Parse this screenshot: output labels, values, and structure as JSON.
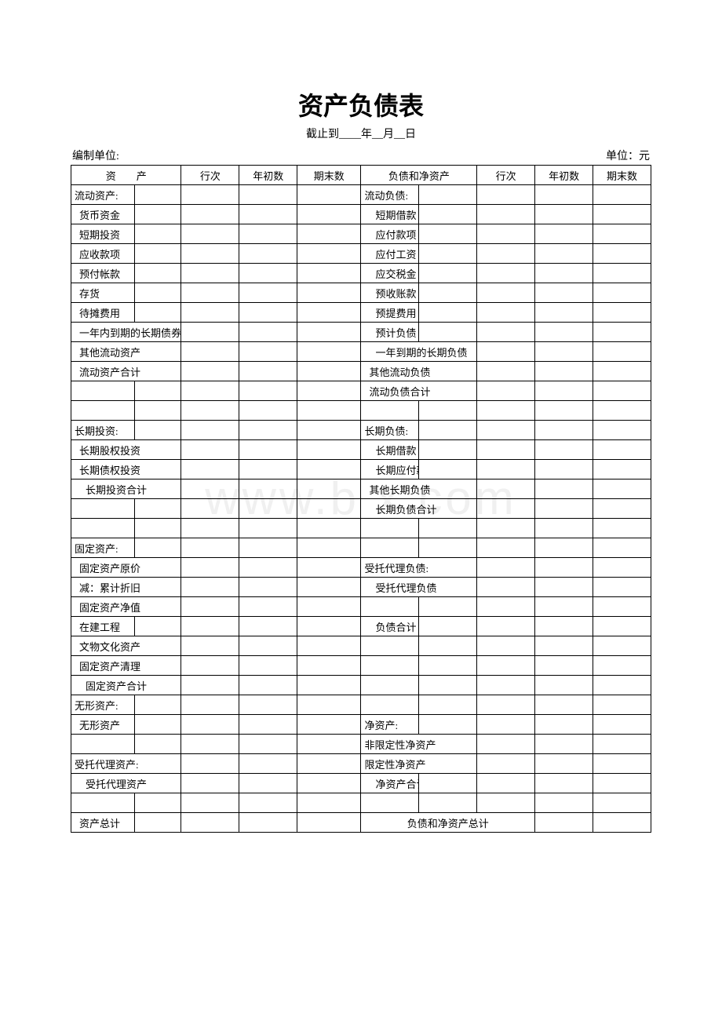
{
  "title": "资产负债表",
  "subtitle": "截止到____年__月__日",
  "meta_left": "编制单位:",
  "meta_right": "单位：元",
  "watermark": "www.b   x.com",
  "headers": {
    "h1": "资　　产",
    "h2": "行次",
    "h3": "年初数",
    "h4": "期末数",
    "h5": "负债和净资产",
    "h6": "行次",
    "h7": "年初数",
    "h8": "期末数"
  },
  "rows": [
    {
      "l1": "流动资产:",
      "l2": "",
      "l3": "",
      "l4": "",
      "r1": "流动负债:",
      "r2": "",
      "r3": "",
      "r4": "",
      "lspan": 1,
      "rspan": 1,
      "lcls": "",
      "rcls": ""
    },
    {
      "l1": "货币资金",
      "l2": "",
      "l3": "",
      "l4": "",
      "r1": "短期借款",
      "r2": "",
      "r3": "",
      "r4": "",
      "lspan": 1,
      "rspan": 1,
      "lcls": "ind1",
      "rcls": "ind2"
    },
    {
      "l1": "短期投资",
      "l2": "",
      "l3": "",
      "l4": "",
      "r1": "应付款项",
      "r2": "",
      "r3": "",
      "r4": "",
      "lspan": 1,
      "rspan": 1,
      "lcls": "ind1",
      "rcls": "ind2"
    },
    {
      "l1": "应收款项",
      "l2": "",
      "l3": "",
      "l4": "",
      "r1": "应付工资",
      "r2": "",
      "r3": "",
      "r4": "",
      "lspan": 1,
      "rspan": 1,
      "lcls": "ind1",
      "rcls": "ind2"
    },
    {
      "l1": "预付帐款",
      "l2": "",
      "l3": "",
      "l4": "",
      "r1": "应交税金",
      "r2": "",
      "r3": "",
      "r4": "",
      "lspan": 1,
      "rspan": 1,
      "lcls": "ind1",
      "rcls": "ind2"
    },
    {
      "l1": "存货",
      "l2": "",
      "l3": "",
      "l4": "",
      "r1": "预收账款",
      "r2": "",
      "r3": "",
      "r4": "",
      "lspan": 1,
      "rspan": 1,
      "lcls": "ind1",
      "rcls": "ind2"
    },
    {
      "l1": "待摊费用",
      "l2": "",
      "l3": "",
      "l4": "",
      "r1": "预提费用",
      "r2": "",
      "r3": "",
      "r4": "",
      "lspan": 1,
      "rspan": 1,
      "lcls": "ind1",
      "rcls": "ind2"
    },
    {
      "l1": "一年内到期的长期债券投资",
      "l2": "",
      "l3": "",
      "l4": "",
      "r1": "预计负债",
      "r2": "",
      "r3": "",
      "r4": "",
      "lspan": 2,
      "rspan": 1,
      "lcls": "ind1",
      "rcls": "ind2"
    },
    {
      "l1": "其他流动资产",
      "l2": "",
      "l3": "",
      "l4": "",
      "r1": "一年到期的长期负债",
      "r2": "",
      "r3": "",
      "r4": "",
      "lspan": 2,
      "rspan": 2,
      "lcls": "ind1",
      "rcls": "ind2"
    },
    {
      "l1": "流动资产合计",
      "l2": "",
      "l3": "",
      "l4": "",
      "r1": "其他流动负债",
      "r2": "",
      "r3": "",
      "r4": "",
      "lspan": 2,
      "rspan": 2,
      "lcls": "ind1",
      "rcls": "ind1"
    },
    {
      "l1": "",
      "l2": "",
      "l3": "",
      "l4": "",
      "r1": "流动负债合计",
      "r2": "",
      "r3": "",
      "r4": "",
      "lspan": 1,
      "rspan": 2,
      "lcls": "",
      "rcls": "ind1"
    },
    {
      "l1": "",
      "l2": "",
      "l3": "",
      "l4": "",
      "r1": "",
      "r2": "",
      "r3": "",
      "r4": "",
      "lspan": 1,
      "rspan": 1,
      "lcls": "",
      "rcls": ""
    },
    {
      "l1": "长期投资:",
      "l2": "",
      "l3": "",
      "l4": "",
      "r1": "长期负债:",
      "r2": "",
      "r3": "",
      "r4": "",
      "lspan": 1,
      "rspan": 1,
      "lcls": "",
      "rcls": ""
    },
    {
      "l1": "长期股权投资",
      "l2": "",
      "l3": "",
      "l4": "",
      "r1": "长期借款",
      "r2": "",
      "r3": "",
      "r4": "",
      "lspan": 2,
      "rspan": 1,
      "lcls": "ind1",
      "rcls": "ind2"
    },
    {
      "l1": "长期债权投资",
      "l2": "",
      "l3": "",
      "l4": "",
      "r1": "长期应付款",
      "r2": "",
      "r3": "",
      "r4": "",
      "lspan": 2,
      "rspan": 1,
      "lcls": "ind1",
      "rcls": "ind2"
    },
    {
      "l1": "长期投资合计",
      "l2": "",
      "l3": "",
      "l4": "",
      "r1": "其他长期负债",
      "r2": "",
      "r3": "",
      "r4": "",
      "lspan": 2,
      "rspan": 2,
      "lcls": "ind2",
      "rcls": "ind1"
    },
    {
      "l1": "",
      "l2": "",
      "l3": "",
      "l4": "",
      "r1": "长期负债合计",
      "r2": "",
      "r3": "",
      "r4": "",
      "lspan": 1,
      "rspan": 2,
      "lcls": "",
      "rcls": "ind2"
    },
    {
      "l1": "",
      "l2": "",
      "l3": "",
      "l4": "",
      "r1": "",
      "r2": "",
      "r3": "",
      "r4": "",
      "lspan": 1,
      "rspan": 1,
      "lcls": "",
      "rcls": ""
    },
    {
      "l1": "固定资产:",
      "l2": "",
      "l3": "",
      "l4": "",
      "r1": "",
      "r2": "",
      "r3": "",
      "r4": "",
      "lspan": 1,
      "rspan": 1,
      "lcls": "",
      "rcls": ""
    },
    {
      "l1": "固定资产原价",
      "l2": "",
      "l3": "",
      "l4": "",
      "r1": "受托代理负债:",
      "r2": "",
      "r3": "",
      "r4": "",
      "lspan": 2,
      "rspan": 2,
      "lcls": "ind1",
      "rcls": ""
    },
    {
      "l1": "减：累计折旧",
      "l2": "",
      "l3": "",
      "l4": "",
      "r1": "受托代理负债",
      "r2": "",
      "r3": "",
      "r4": "",
      "lspan": 2,
      "rspan": 2,
      "lcls": "ind1",
      "rcls": "ind2"
    },
    {
      "l1": "固定资产净值",
      "l2": "",
      "l3": "",
      "l4": "",
      "r1": "",
      "r2": "",
      "r3": "",
      "r4": "",
      "lspan": 2,
      "rspan": 1,
      "lcls": "ind1",
      "rcls": ""
    },
    {
      "l1": "在建工程",
      "l2": "",
      "l3": "",
      "l4": "",
      "r1": "负债合计",
      "r2": "",
      "r3": "",
      "r4": "",
      "lspan": 1,
      "rspan": 1,
      "lcls": "ind1",
      "rcls": "ind2"
    },
    {
      "l1": "文物文化资产",
      "l2": "",
      "l3": "",
      "l4": "",
      "r1": "",
      "r2": "",
      "r3": "",
      "r4": "",
      "lspan": 2,
      "rspan": 1,
      "lcls": "ind1",
      "rcls": ""
    },
    {
      "l1": "固定资产清理",
      "l2": "",
      "l3": "",
      "l4": "",
      "r1": "",
      "r2": "",
      "r3": "",
      "r4": "",
      "lspan": 2,
      "rspan": 1,
      "lcls": "ind1",
      "rcls": ""
    },
    {
      "l1": "固定资产合计",
      "l2": "",
      "l3": "",
      "l4": "",
      "r1": "",
      "r2": "",
      "r3": "",
      "r4": "",
      "lspan": 2,
      "rspan": 1,
      "lcls": "ind2",
      "rcls": ""
    },
    {
      "l1": "无形资产:",
      "l2": "",
      "l3": "",
      "l4": "",
      "r1": "",
      "r2": "",
      "r3": "",
      "r4": "",
      "lspan": 1,
      "rspan": 1,
      "lcls": "",
      "rcls": ""
    },
    {
      "l1": "无形资产",
      "l2": "",
      "l3": "",
      "l4": "",
      "r1": "净资产:",
      "r2": "",
      "r3": "",
      "r4": "",
      "lspan": 1,
      "rspan": 1,
      "lcls": "ind1",
      "rcls": ""
    },
    {
      "l1": "",
      "l2": "",
      "l3": "",
      "l4": "",
      "r1": "非限定性净资产",
      "r2": "",
      "r3": "",
      "r4": "",
      "lspan": 1,
      "rspan": 2,
      "lcls": "",
      "rcls": ""
    },
    {
      "l1": "受托代理资产:",
      "l2": "",
      "l3": "",
      "l4": "",
      "r1": "限定性净资产",
      "r2": "",
      "r3": "",
      "r4": "",
      "lspan": 2,
      "rspan": 2,
      "lcls": "",
      "rcls": ""
    },
    {
      "l1": "受托代理资产",
      "l2": "",
      "l3": "",
      "l4": "",
      "r1": "净资产合计",
      "r2": "",
      "r3": "",
      "r4": "",
      "lspan": 2,
      "rspan": 1,
      "lcls": "ind2",
      "rcls": "ind2"
    },
    {
      "l1": "",
      "l2": "",
      "l3": "",
      "l4": "",
      "r1": "",
      "r2": "",
      "r3": "",
      "r4": "",
      "lspan": 1,
      "rspan": 1,
      "lcls": "",
      "rcls": ""
    },
    {
      "l1": "资产总计",
      "l2": "",
      "l3": "",
      "l4": "",
      "r1": "负债和净资产总计",
      "r2": "",
      "r3": "",
      "r4": "",
      "lspan": 1,
      "rspan": 3,
      "lcls": "ind1",
      "rcls": "hdr"
    }
  ]
}
